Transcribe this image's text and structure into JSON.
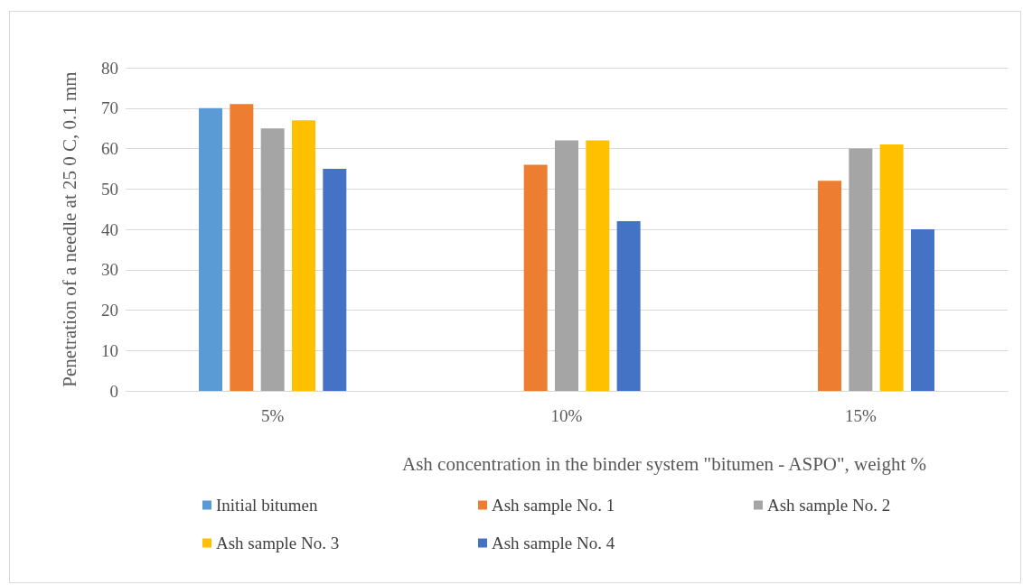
{
  "chart_data": {
    "type": "bar",
    "xlabel": "Ash concentration in the binder system \"bitumen - ASPO\", weight %",
    "ylabel": "Penetration of a needle at 25 0 C, 0.1 mm",
    "categories": [
      "5%",
      "10%",
      "15%"
    ],
    "series": [
      {
        "name": "Initial bitumen",
        "color": "#5b9bd5",
        "values": [
          70,
          null,
          null
        ]
      },
      {
        "name": "Ash sample No. 1",
        "color": "#ed7d31",
        "values": [
          71,
          56,
          52
        ]
      },
      {
        "name": "Ash sample No. 2",
        "color": "#a5a5a5",
        "values": [
          65,
          62,
          60
        ]
      },
      {
        "name": "Ash sample No. 3",
        "color": "#ffc000",
        "values": [
          67,
          62,
          61
        ]
      },
      {
        "name": "Ash sample No. 4",
        "color": "#4472c4",
        "values": [
          55,
          42,
          40
        ]
      }
    ],
    "ylim": [
      0,
      80
    ],
    "yticks": [
      0,
      10,
      20,
      30,
      40,
      50,
      60,
      70,
      80
    ],
    "grid": "y",
    "legend": "bottom"
  }
}
